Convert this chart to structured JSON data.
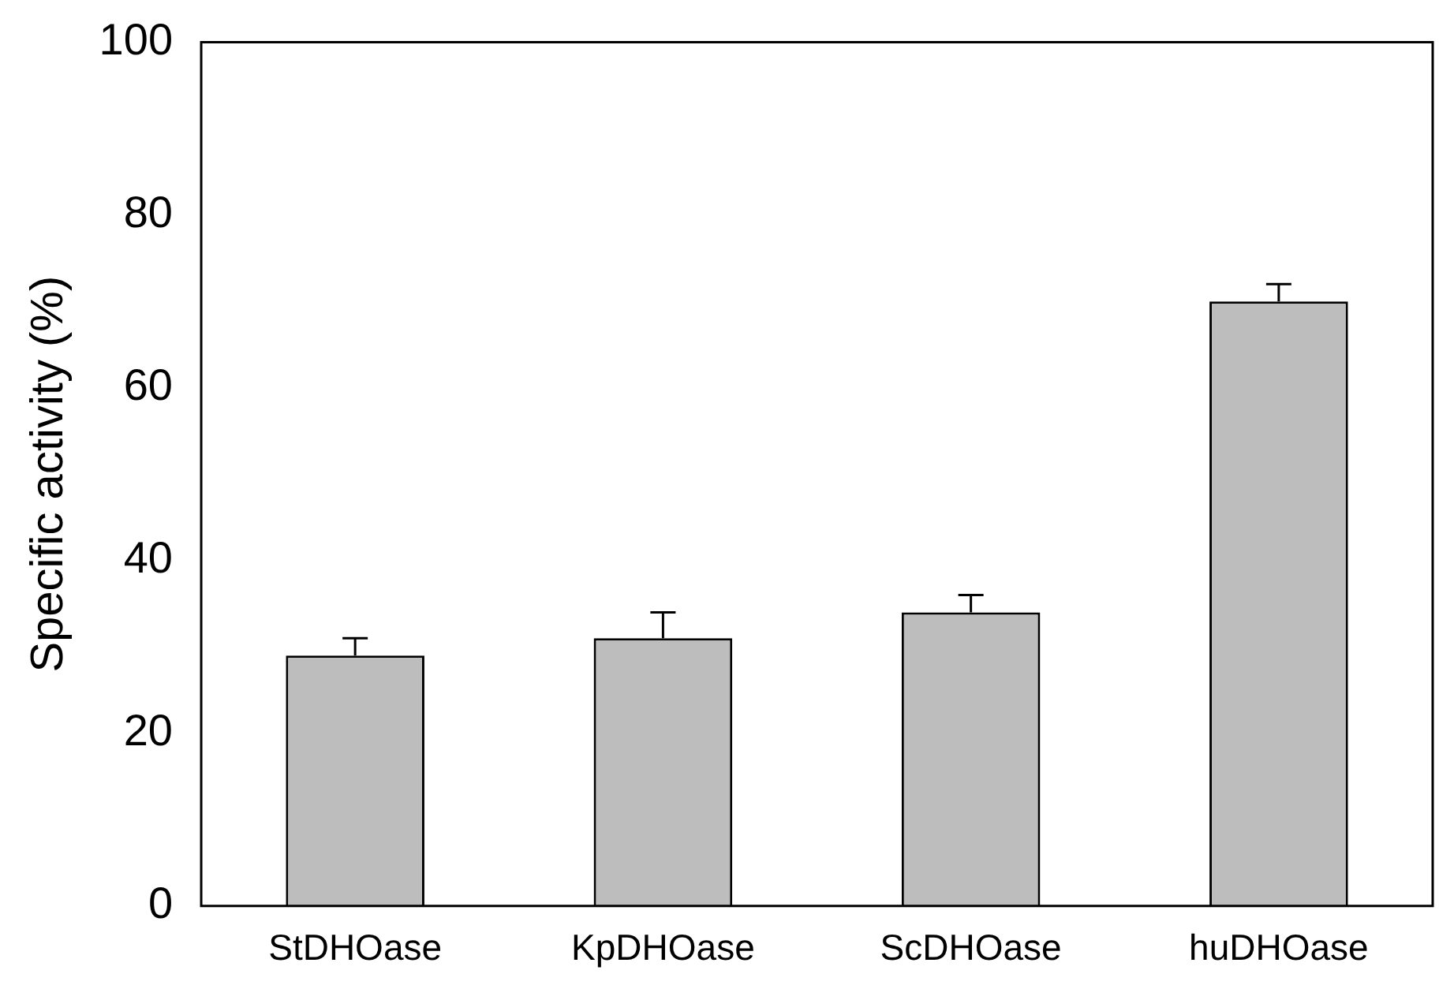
{
  "chart_data": {
    "type": "bar",
    "ylabel": "Specific activity (%)",
    "categories": [
      "StDHOase",
      "KpDHOase",
      "ScDHOase",
      "huDHOase"
    ],
    "values": [
      29,
      31,
      34,
      70
    ],
    "errors": [
      [
        29,
        31
      ],
      [
        31,
        34
      ],
      [
        34,
        36
      ],
      [
        70,
        72
      ]
    ],
    "color": "#bdbdbd",
    "ylim": [
      0,
      100
    ],
    "yticks": [
      0,
      20,
      40,
      60,
      80,
      100
    ],
    "grid": false,
    "legend": false
  }
}
